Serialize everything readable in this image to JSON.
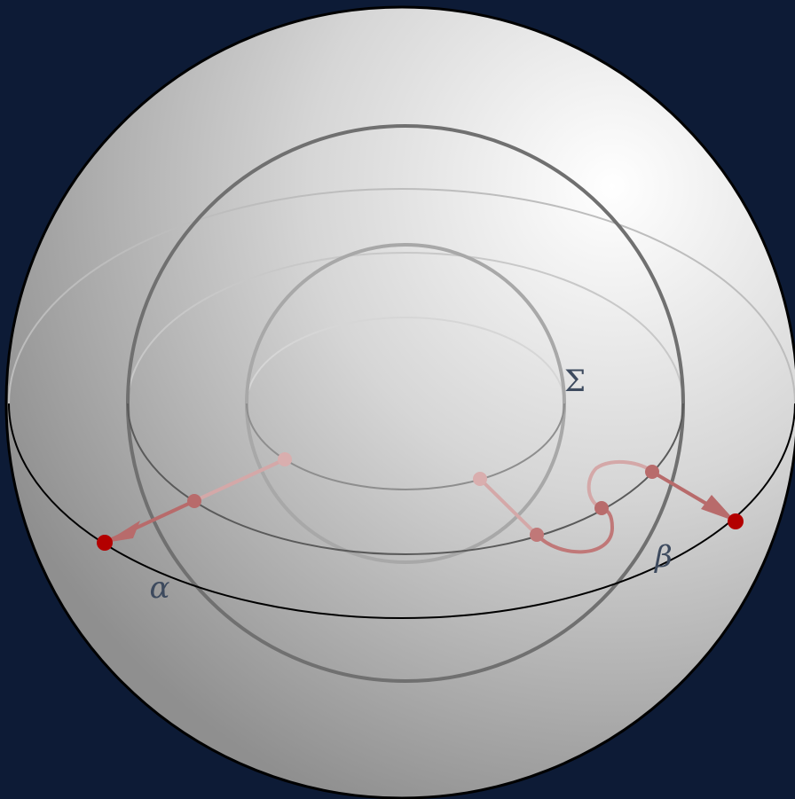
{
  "labels": {
    "sigma": "Σ",
    "alpha": "α",
    "beta": "β"
  }
}
